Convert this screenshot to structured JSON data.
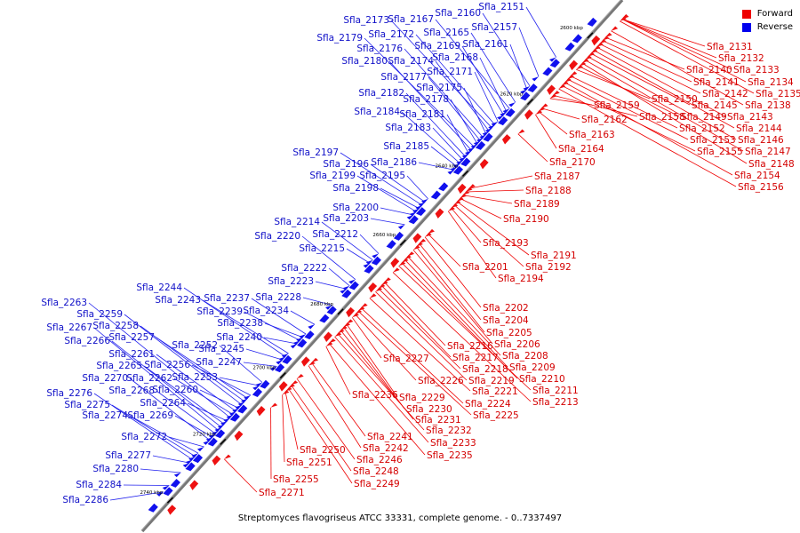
{
  "caption": "Streptomyces flavogriseus ATCC 33331, complete genome. - 0..7337497",
  "legend": [
    {
      "label": "Forward",
      "color": "#ee0000"
    },
    {
      "label": "Reverse",
      "color": "#0000ee"
    }
  ],
  "strand_colors": {
    "forward": "#ee1111",
    "reverse": "#1111ee",
    "axis": "#777777"
  },
  "scale_labels": [
    "2600 kbp",
    "2620 kbp",
    "2640 kbp",
    "2660 kbp",
    "2680 kbp",
    "2700 kbp",
    "2720 kbp",
    "2740 kbp"
  ],
  "forward_genes": [
    "Sfla_2131",
    "Sfla_2132",
    "Sfla_2133",
    "Sfla_2134",
    "Sfla_2135",
    "Sfla_2138",
    "Sfla_2140",
    "Sfla_2141",
    "Sfla_2142",
    "Sfla_2143",
    "Sfla_2144",
    "Sfla_2145",
    "Sfla_2146",
    "Sfla_2147",
    "Sfla_2148",
    "Sfla_2149",
    "Sfla_2150",
    "Sfla_2152",
    "Sfla_2153",
    "Sfla_2154",
    "Sfla_2155",
    "Sfla_2156",
    "Sfla_2158",
    "Sfla_2159",
    "Sfla_2162",
    "Sfla_2163",
    "Sfla_2164",
    "Sfla_2170",
    "Sfla_2187",
    "Sfla_2188",
    "Sfla_2189",
    "Sfla_2190",
    "Sfla_2191",
    "Sfla_2192",
    "Sfla_2193",
    "Sfla_2194",
    "Sfla_2201",
    "Sfla_2202",
    "Sfla_2204",
    "Sfla_2205",
    "Sfla_2206",
    "Sfla_2208",
    "Sfla_2209",
    "Sfla_2210",
    "Sfla_2211",
    "Sfla_2213",
    "Sfla_2216",
    "Sfla_2217",
    "Sfla_2218",
    "Sfla_2219",
    "Sfla_2221",
    "Sfla_2224",
    "Sfla_2225",
    "Sfla_2226",
    "Sfla_2227",
    "Sfla_2229",
    "Sfla_2230",
    "Sfla_2231",
    "Sfla_2232",
    "Sfla_2233",
    "Sfla_2235",
    "Sfla_2236",
    "Sfla_2241",
    "Sfla_2242",
    "Sfla_2246",
    "Sfla_2248",
    "Sfla_2249",
    "Sfla_2250",
    "Sfla_2251",
    "Sfla_2255",
    "Sfla_2271"
  ],
  "reverse_genes": [
    "Sfla_2151",
    "Sfla_2157",
    "Sfla_2160",
    "Sfla_2161",
    "Sfla_2165",
    "Sfla_2167",
    "Sfla_2168",
    "Sfla_2169",
    "Sfla_2171",
    "Sfla_2172",
    "Sfla_2173",
    "Sfla_2174",
    "Sfla_2175",
    "Sfla_2176",
    "Sfla_2177",
    "Sfla_2178",
    "Sfla_2179",
    "Sfla_2180",
    "Sfla_2181",
    "Sfla_2182",
    "Sfla_2183",
    "Sfla_2184",
    "Sfla_2185",
    "Sfla_2186",
    "Sfla_2195",
    "Sfla_2196",
    "Sfla_2197",
    "Sfla_2198",
    "Sfla_2199",
    "Sfla_2200",
    "Sfla_2203",
    "Sfla_2212",
    "Sfla_2214",
    "Sfla_2215",
    "Sfla_2220",
    "Sfla_2222",
    "Sfla_2223",
    "Sfla_2228",
    "Sfla_2234",
    "Sfla_2237",
    "Sfla_2238",
    "Sfla_2239",
    "Sfla_2240",
    "Sfla_2243",
    "Sfla_2244",
    "Sfla_2245",
    "Sfla_2247",
    "Sfla_2252",
    "Sfla_2253",
    "Sfla_2256",
    "Sfla_2257",
    "Sfla_2258",
    "Sfla_2259",
    "Sfla_2260",
    "Sfla_2261",
    "Sfla_2262",
    "Sfla_2263",
    "Sfla_2264",
    "Sfla_2265",
    "Sfla_2266",
    "Sfla_2267",
    "Sfla_2268",
    "Sfla_2269",
    "Sfla_2270",
    "Sfla_2272",
    "Sfla_2274",
    "Sfla_2275",
    "Sfla_2276",
    "Sfla_2277",
    "Sfla_2280",
    "Sfla_2284",
    "Sfla_2286"
  ]
}
